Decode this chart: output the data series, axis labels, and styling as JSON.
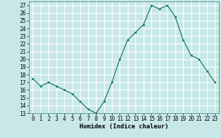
{
  "x": [
    0,
    1,
    2,
    3,
    4,
    5,
    6,
    7,
    8,
    9,
    10,
    11,
    12,
    13,
    14,
    15,
    16,
    17,
    18,
    19,
    20,
    21,
    22,
    23
  ],
  "y": [
    17.5,
    16.5,
    17.0,
    16.5,
    16.0,
    15.5,
    14.5,
    13.5,
    13.0,
    14.5,
    17.0,
    20.0,
    22.5,
    23.5,
    24.5,
    27.0,
    26.5,
    27.0,
    25.5,
    22.5,
    20.5,
    20.0,
    18.5,
    17.0
  ],
  "xlabel": "Humidex (Indice chaleur)",
  "xlim": [
    -0.5,
    23.5
  ],
  "ylim": [
    13,
    27.5
  ],
  "yticks": [
    13,
    14,
    15,
    16,
    17,
    18,
    19,
    20,
    21,
    22,
    23,
    24,
    25,
    26,
    27
  ],
  "xticks": [
    0,
    1,
    2,
    3,
    4,
    5,
    6,
    7,
    8,
    9,
    10,
    11,
    12,
    13,
    14,
    15,
    16,
    17,
    18,
    19,
    20,
    21,
    22,
    23
  ],
  "line_color": "#1a7a5e",
  "marker_color": "#1a7a5e",
  "bg_color": "#c8e8e8",
  "grid_color": "#ffffff",
  "label_fontsize": 6.5,
  "tick_fontsize": 5.5
}
